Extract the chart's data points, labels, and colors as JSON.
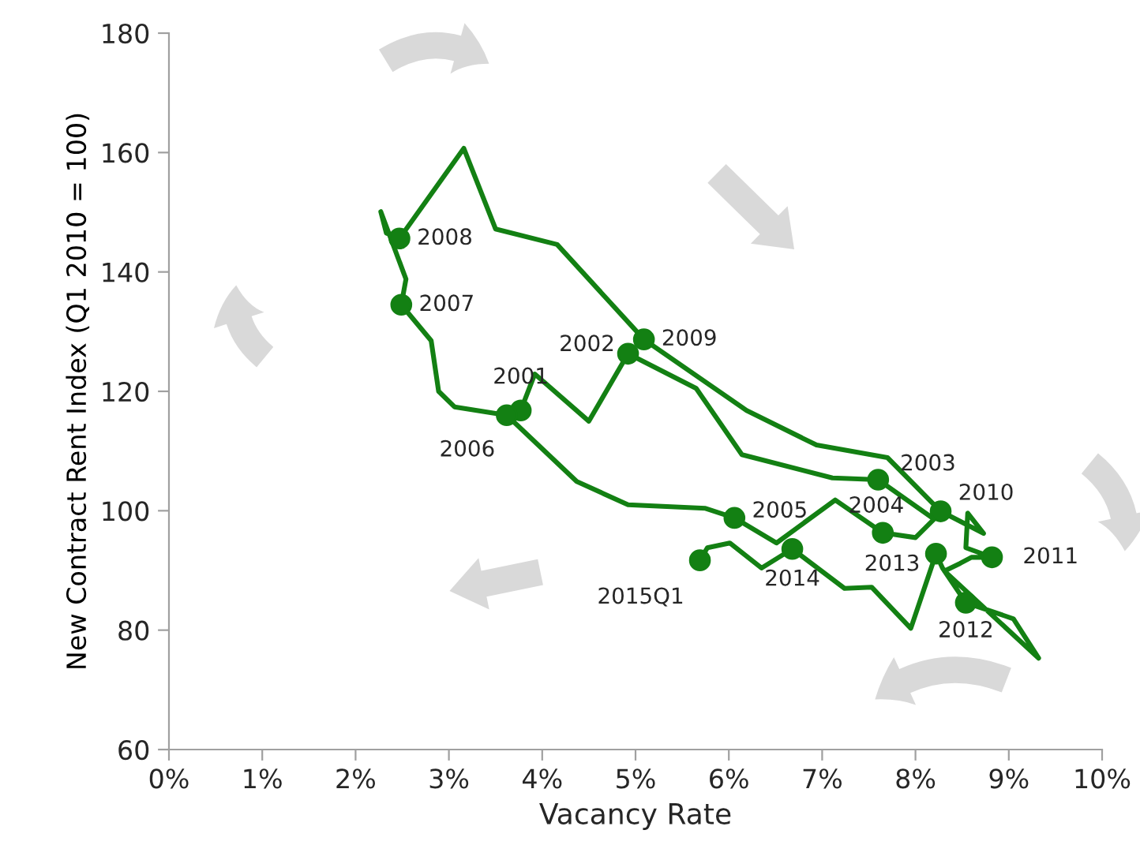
{
  "chart_data": {
    "type": "line",
    "xlabel": "Vacancy Rate",
    "ylabel": "New Contract Rent Index (Q1 2010 = 100)",
    "xlim": [
      0,
      10
    ],
    "ylim": [
      60,
      180
    ],
    "xticks": [
      {
        "value": 0,
        "label": "0%"
      },
      {
        "value": 1,
        "label": "1%"
      },
      {
        "value": 2,
        "label": "2%"
      },
      {
        "value": 3,
        "label": "3%"
      },
      {
        "value": 4,
        "label": "4%"
      },
      {
        "value": 5,
        "label": "5%"
      },
      {
        "value": 6,
        "label": "6%"
      },
      {
        "value": 7,
        "label": "7%"
      },
      {
        "value": 8,
        "label": "8%"
      },
      {
        "value": 9,
        "label": "9%"
      },
      {
        "value": 10,
        "label": "10%"
      }
    ],
    "yticks": [
      60,
      80,
      100,
      120,
      140,
      160,
      180
    ],
    "grid": false,
    "legend": false,
    "series": [
      {
        "type": "line",
        "color": "#138013",
        "marker": "none",
        "line_style": "solid",
        "x": [
          3.77,
          3.92,
          4.5,
          4.92,
          5.65,
          6.14,
          7.11,
          7.6,
          8.2,
          8.0,
          7.65,
          7.14,
          6.51,
          6.06,
          5.75,
          4.92,
          4.37,
          3.62,
          3.06,
          2.89,
          2.81,
          2.49,
          2.54,
          2.27,
          2.33,
          2.47,
          3.16,
          3.5,
          4.16,
          5.09,
          6.19,
          6.94,
          7.7,
          8.27,
          8.73,
          8.56,
          8.54,
          8.82,
          8.6,
          8.48,
          8.31,
          9.32,
          9.05,
          8.54,
          8.29,
          8.22,
          7.95,
          7.53,
          7.24,
          6.68,
          6.35,
          6.01,
          5.77,
          5.69
        ],
        "values": [
          116.8,
          122.9,
          115.0,
          126.3,
          120.5,
          109.4,
          105.5,
          105.2,
          98.6,
          95.5,
          96.3,
          101.8,
          94.6,
          98.8,
          100.4,
          101.0,
          104.9,
          116.0,
          117.4,
          120.0,
          128.5,
          134.5,
          138.8,
          150.1,
          146.5,
          145.6,
          160.7,
          147.2,
          144.6,
          128.7,
          116.8,
          111.0,
          108.9,
          99.9,
          96.2,
          99.6,
          93.8,
          92.2,
          92.2,
          91.2,
          89.9,
          75.3,
          81.9,
          84.6,
          90.4,
          92.8,
          80.3,
          87.2,
          87.0,
          93.6,
          90.4,
          94.6,
          93.8,
          91.7
        ]
      },
      {
        "type": "scatter",
        "color": "#138013",
        "marker": "circle",
        "x": [
          3.77,
          4.92,
          7.6,
          7.65,
          6.06,
          3.62,
          2.49,
          2.47,
          5.09,
          8.27,
          8.82,
          8.54,
          8.22,
          6.68,
          5.69
        ],
        "values": [
          116.8,
          126.3,
          105.2,
          96.3,
          98.8,
          116.0,
          134.5,
          145.6,
          128.7,
          99.9,
          92.2,
          84.6,
          92.8,
          93.6,
          91.7
        ]
      }
    ],
    "annotations": [
      {
        "text": "2001",
        "x": 3.77,
        "y": 116.8
      },
      {
        "text": "2002",
        "x": 4.92,
        "y": 126.3
      },
      {
        "text": "2003",
        "x": 7.6,
        "y": 105.2
      },
      {
        "text": "2004",
        "x": 7.65,
        "y": 96.3
      },
      {
        "text": "2005",
        "x": 6.06,
        "y": 98.8
      },
      {
        "text": "2006",
        "x": 3.62,
        "y": 116.0
      },
      {
        "text": "2007",
        "x": 2.49,
        "y": 134.5
      },
      {
        "text": "2008",
        "x": 2.47,
        "y": 145.6
      },
      {
        "text": "2009",
        "x": 5.09,
        "y": 128.7
      },
      {
        "text": "2010",
        "x": 8.27,
        "y": 99.9
      },
      {
        "text": "2011",
        "x": 8.82,
        "y": 92.2
      },
      {
        "text": "2012",
        "x": 8.54,
        "y": 84.6
      },
      {
        "text": "2013",
        "x": 8.22,
        "y": 92.8
      },
      {
        "text": "2014",
        "x": 6.68,
        "y": 93.6
      },
      {
        "text": "2015Q1",
        "x": 5.69,
        "y": 91.7
      }
    ]
  }
}
